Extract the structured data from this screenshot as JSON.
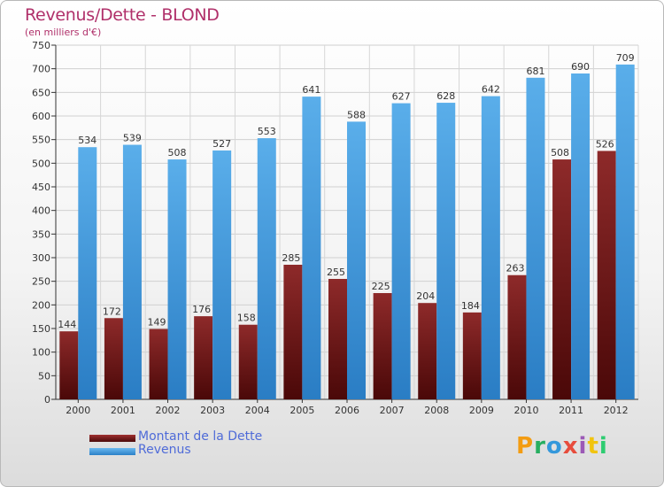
{
  "chart_data": {
    "type": "bar",
    "title": "Revenus/Dette - BLOND",
    "subtitle": "(en milliers d'€)",
    "categories": [
      "2000",
      "2001",
      "2002",
      "2003",
      "2004",
      "2005",
      "2006",
      "2007",
      "2008",
      "2009",
      "2010",
      "2011",
      "2012"
    ],
    "series": [
      {
        "name": "Montant de la Dette",
        "color": "#7a1c1c",
        "values": [
          144,
          172,
          149,
          176,
          158,
          285,
          255,
          225,
          204,
          184,
          263,
          508,
          526
        ]
      },
      {
        "name": "Revenus",
        "color": "#3d97e0",
        "values": [
          534,
          539,
          508,
          527,
          553,
          641,
          588,
          627,
          628,
          642,
          681,
          690,
          709
        ]
      }
    ],
    "ylim": [
      0,
      750
    ],
    "ytick_step": 50,
    "grid": true,
    "legend_position": "bottom-left"
  },
  "logo": {
    "letters": [
      "P",
      "r",
      "o",
      "x",
      "i",
      "t",
      "i"
    ],
    "colors": [
      "#f39c12",
      "#27ae60",
      "#3498db",
      "#e74c3c",
      "#9b59b6",
      "#f1c40f",
      "#2ecc71"
    ]
  }
}
